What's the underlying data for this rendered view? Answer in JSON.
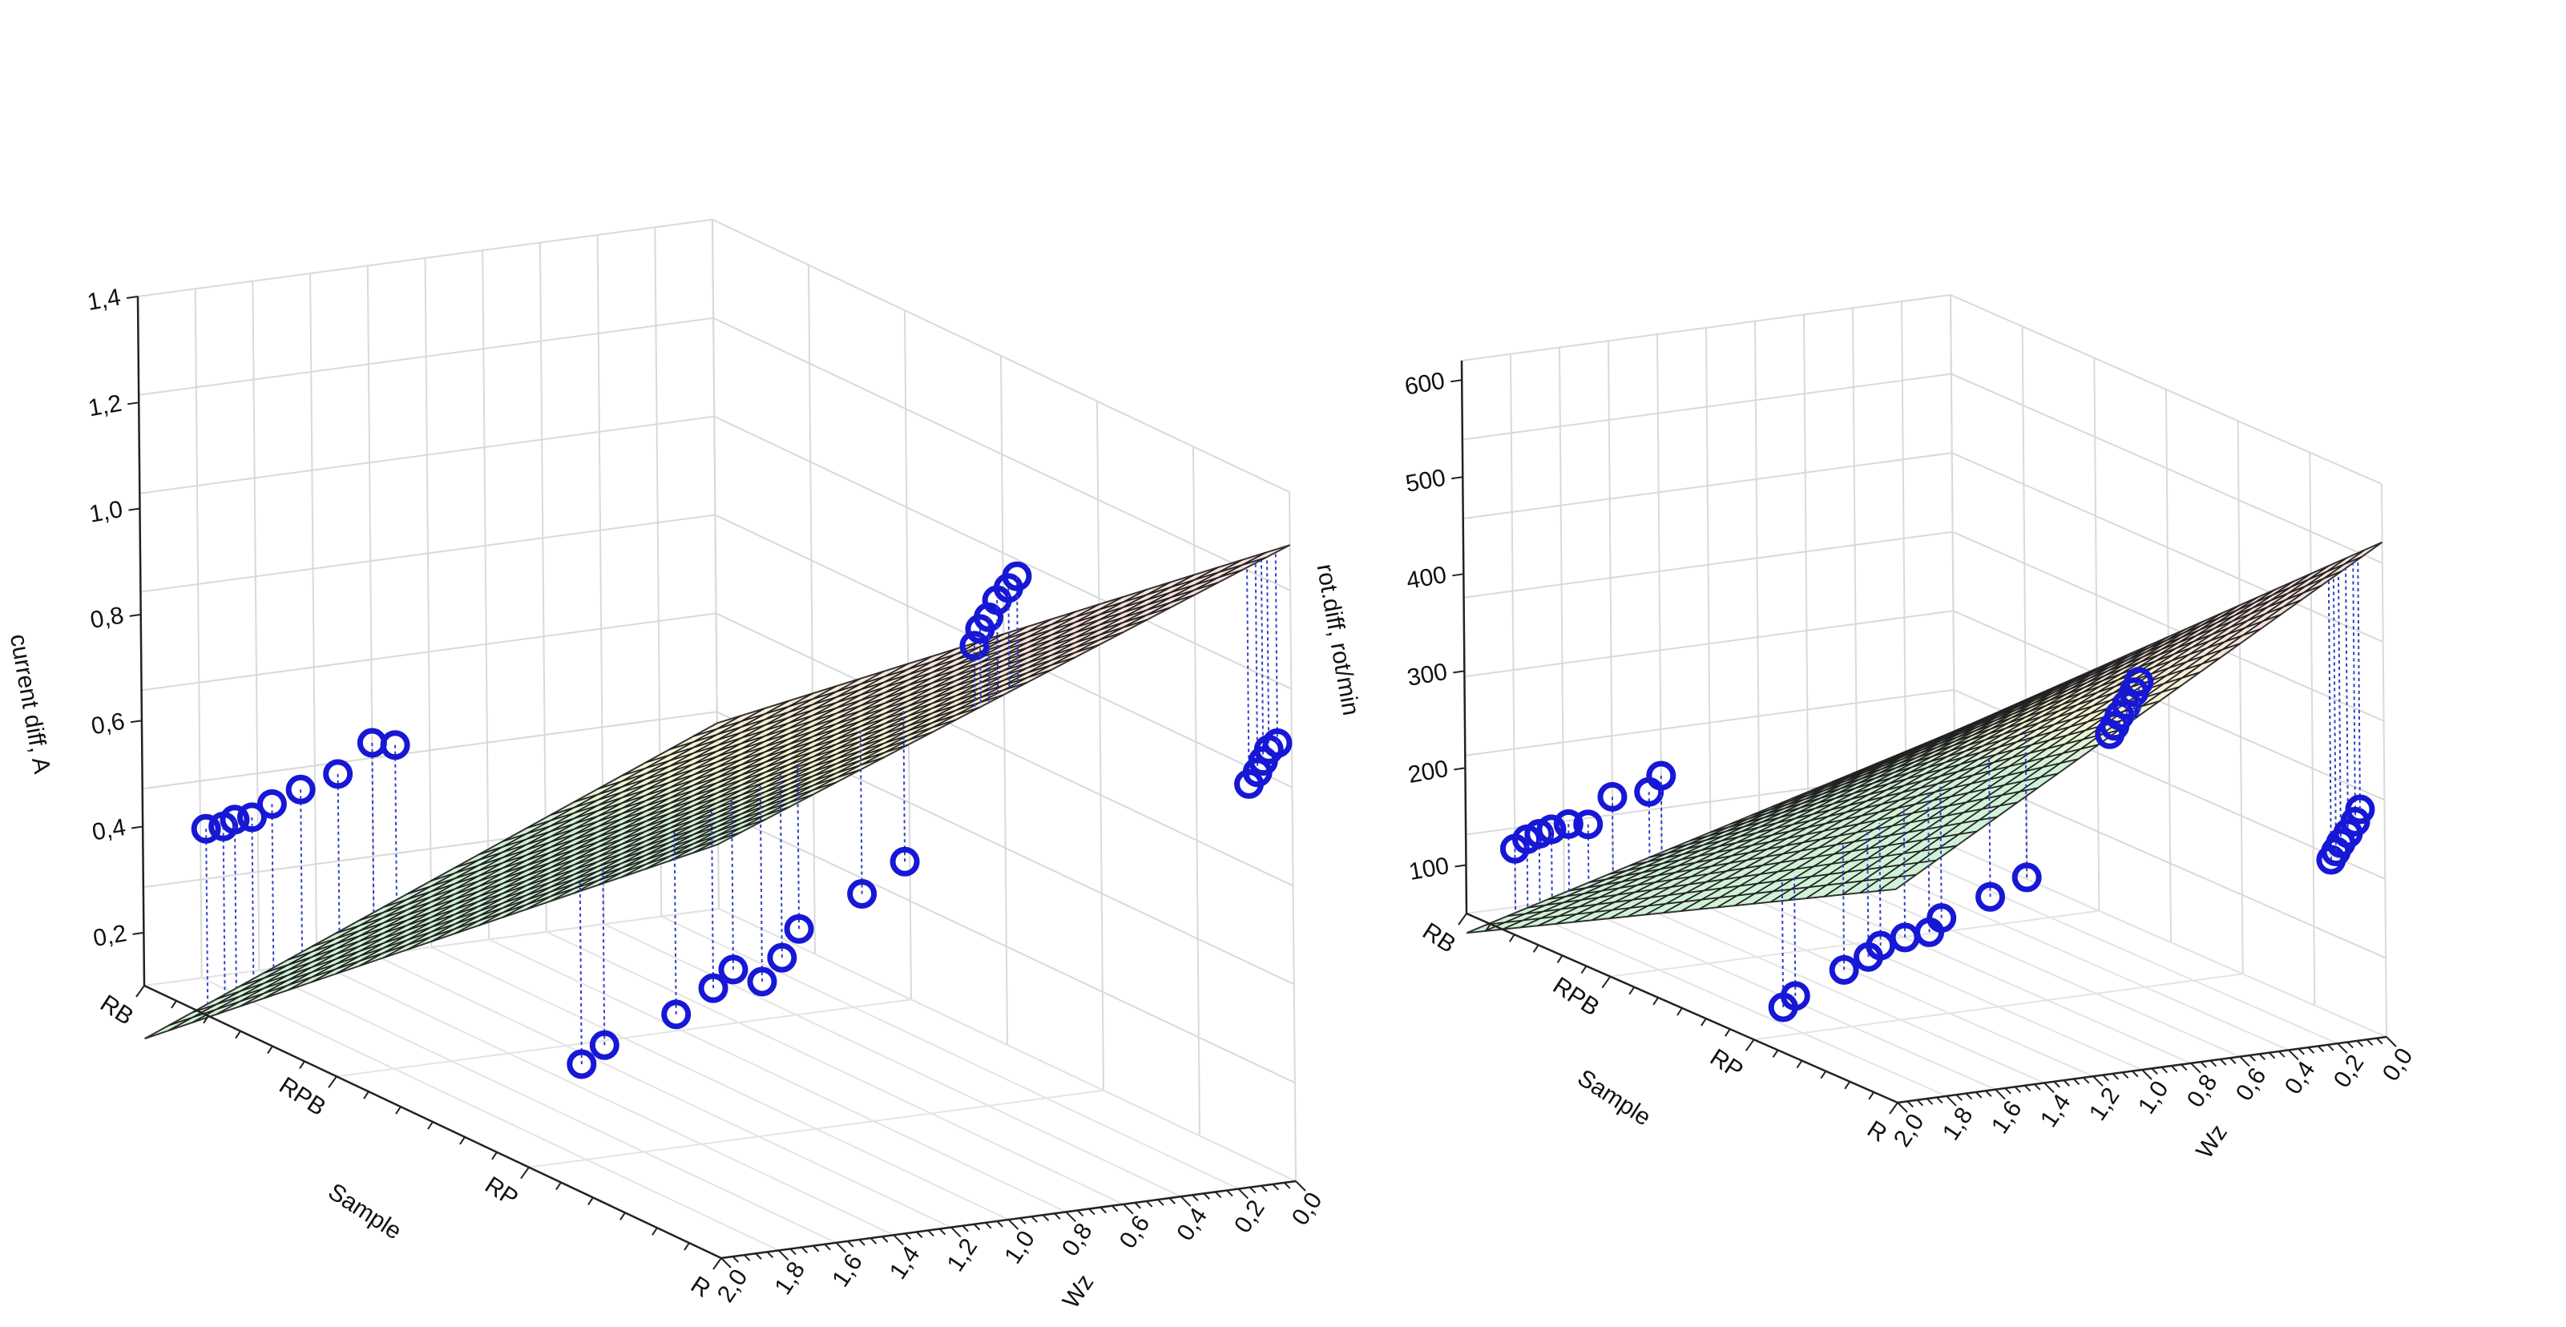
{
  "chart_data": [
    {
      "type": "surface-3d-scatter",
      "title": "",
      "xlabel": "Sample",
      "ylabel": "Wz",
      "zlabel": "current diff, A",
      "x_categories": [
        "RB",
        "RPB",
        "RP",
        "R"
      ],
      "y_ticks": [
        "0,0",
        "0,2",
        "0,4",
        "0,6",
        "0,8",
        "1,0",
        "1,2",
        "1,4",
        "1,6",
        "1,8",
        "2,0"
      ],
      "y_range": [
        0.0,
        2.0
      ],
      "z_ticks": [
        "0,2",
        "0,4",
        "0,6",
        "0,8",
        "1,0",
        "1,2",
        "1,4"
      ],
      "z_range": [
        0.1,
        1.4
      ],
      "grid": true,
      "surface": {
        "kind": "fitted-plane",
        "z_at_RB_Wz0": 0.45,
        "z_at_R_Wz0": 1.3,
        "z_at_RB_Wz2": 0.0,
        "z_at_R_Wz2": 0.88,
        "colormap": [
          "#c8f0d0",
          "#f5f5c8",
          "#f8d8d0"
        ]
      },
      "points": [
        {
          "x": 0.0,
          "y": 1.78,
          "z": 0.38
        },
        {
          "x": 0.0,
          "y": 1.72,
          "z": 0.38
        },
        {
          "x": 0.0,
          "y": 1.68,
          "z": 0.39
        },
        {
          "x": 0.0,
          "y": 1.62,
          "z": 0.39
        },
        {
          "x": 0.0,
          "y": 1.55,
          "z": 0.41
        },
        {
          "x": 0.0,
          "y": 1.45,
          "z": 0.43
        },
        {
          "x": 0.0,
          "y": 1.32,
          "z": 0.45
        },
        {
          "x": 0.0,
          "y": 1.2,
          "z": 0.5
        },
        {
          "x": 0.0,
          "y": 1.12,
          "z": 0.49
        },
        {
          "x": 0.65,
          "y": 1.78,
          "z": 0.27
        },
        {
          "x": 0.65,
          "y": 1.7,
          "z": 0.3
        },
        {
          "x": 0.65,
          "y": 1.45,
          "z": 0.34
        },
        {
          "x": 0.65,
          "y": 1.32,
          "z": 0.38
        },
        {
          "x": 0.65,
          "y": 1.25,
          "z": 0.41
        },
        {
          "x": 0.65,
          "y": 1.15,
          "z": 0.38
        },
        {
          "x": 0.65,
          "y": 1.08,
          "z": 0.42
        },
        {
          "x": 0.65,
          "y": 1.02,
          "z": 0.47
        },
        {
          "x": 0.65,
          "y": 0.8,
          "z": 0.52
        },
        {
          "x": 0.65,
          "y": 0.65,
          "z": 0.57
        },
        {
          "x": 1.0,
          "y": 1.1,
          "z": 1.19
        },
        {
          "x": 1.0,
          "y": 1.08,
          "z": 1.22
        },
        {
          "x": 1.0,
          "y": 1.05,
          "z": 1.24
        },
        {
          "x": 1.0,
          "y": 1.02,
          "z": 1.27
        },
        {
          "x": 1.0,
          "y": 0.98,
          "z": 1.29
        },
        {
          "x": 1.0,
          "y": 0.95,
          "z": 1.31
        },
        {
          "x": 1.0,
          "y": 0.15,
          "z": 0.86
        },
        {
          "x": 1.0,
          "y": 0.12,
          "z": 0.88
        },
        {
          "x": 1.0,
          "y": 0.1,
          "z": 0.9
        },
        {
          "x": 1.0,
          "y": 0.08,
          "z": 0.92
        },
        {
          "x": 1.0,
          "y": 0.05,
          "z": 0.93
        }
      ]
    },
    {
      "type": "surface-3d-scatter",
      "title": "",
      "xlabel": "Sample",
      "ylabel": "Wz",
      "zlabel": "rot.diff, rot/min",
      "x_categories": [
        "RB",
        "RPB",
        "RP",
        "R"
      ],
      "y_ticks": [
        "0,0",
        "0,2",
        "0,4",
        "0,6",
        "0,8",
        "1,0",
        "1,2",
        "1,4",
        "1,6",
        "1,8",
        "2,0"
      ],
      "y_range": [
        0.0,
        2.0
      ],
      "z_ticks": [
        "100",
        "200",
        "300",
        "400",
        "500",
        "600"
      ],
      "z_range": [
        50,
        620
      ],
      "grid": true,
      "surface": {
        "kind": "fitted-plane",
        "z_at_RB_Wz0": 170,
        "z_at_R_Wz0": 560,
        "z_at_RB_Wz2": 30,
        "z_at_R_Wz2": 270,
        "colormap": [
          "#c8f0d0",
          "#f5f5c8",
          "#f8d8d0"
        ]
      },
      "points": [
        {
          "x": 0.0,
          "y": 1.8,
          "z": 110
        },
        {
          "x": 0.0,
          "y": 1.75,
          "z": 118
        },
        {
          "x": 0.0,
          "y": 1.7,
          "z": 122
        },
        {
          "x": 0.0,
          "y": 1.65,
          "z": 125
        },
        {
          "x": 0.0,
          "y": 1.58,
          "z": 128
        },
        {
          "x": 0.0,
          "y": 1.5,
          "z": 125
        },
        {
          "x": 0.0,
          "y": 1.4,
          "z": 150
        },
        {
          "x": 0.0,
          "y": 1.25,
          "z": 150
        },
        {
          "x": 0.0,
          "y": 1.2,
          "z": 165
        },
        {
          "x": 0.65,
          "y": 1.85,
          "z": 75
        },
        {
          "x": 0.65,
          "y": 1.8,
          "z": 85
        },
        {
          "x": 0.65,
          "y": 1.6,
          "z": 105
        },
        {
          "x": 0.65,
          "y": 1.5,
          "z": 115
        },
        {
          "x": 0.65,
          "y": 1.45,
          "z": 125
        },
        {
          "x": 0.65,
          "y": 1.35,
          "z": 130
        },
        {
          "x": 0.65,
          "y": 1.25,
          "z": 132
        },
        {
          "x": 0.65,
          "y": 1.2,
          "z": 145
        },
        {
          "x": 0.65,
          "y": 1.0,
          "z": 160
        },
        {
          "x": 0.65,
          "y": 0.85,
          "z": 175
        },
        {
          "x": 1.0,
          "y": 1.12,
          "z": 400
        },
        {
          "x": 1.0,
          "y": 1.1,
          "z": 408
        },
        {
          "x": 1.0,
          "y": 1.08,
          "z": 418
        },
        {
          "x": 1.0,
          "y": 1.05,
          "z": 428
        },
        {
          "x": 1.0,
          "y": 1.02,
          "z": 440
        },
        {
          "x": 1.0,
          "y": 1.0,
          "z": 450
        },
        {
          "x": 1.0,
          "y": 0.22,
          "z": 240
        },
        {
          "x": 1.0,
          "y": 0.2,
          "z": 248
        },
        {
          "x": 1.0,
          "y": 0.18,
          "z": 256
        },
        {
          "x": 1.0,
          "y": 0.15,
          "z": 265
        },
        {
          "x": 1.0,
          "y": 0.12,
          "z": 276
        },
        {
          "x": 1.0,
          "y": 0.1,
          "z": 288
        }
      ]
    }
  ]
}
